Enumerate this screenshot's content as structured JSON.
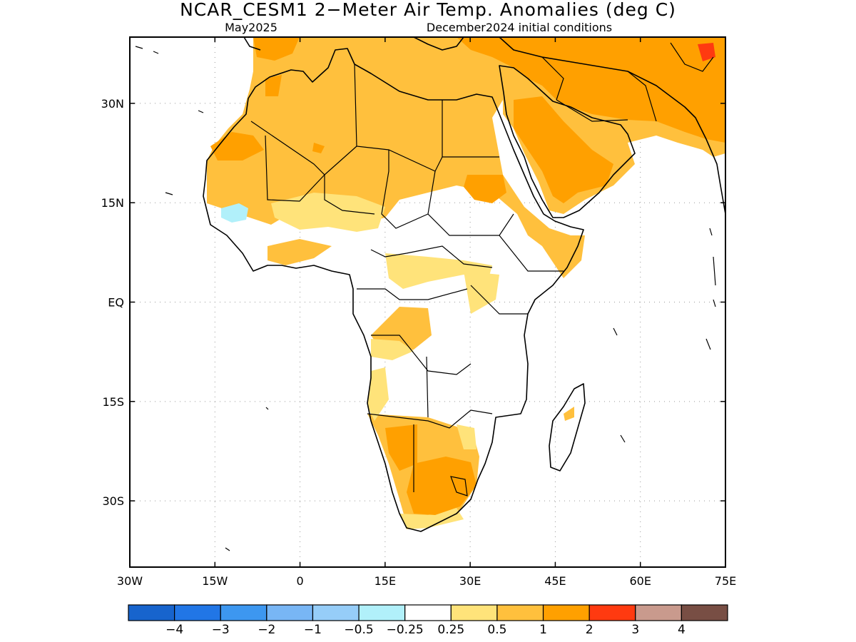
{
  "title": "NCAR_CESM1 2−Meter Air Temp. Anomalies (deg C)",
  "subtitle_left": "May2025",
  "subtitle_right": "December2024 initial conditions",
  "map": {
    "lon_range": [
      -30,
      75
    ],
    "lat_range": [
      -40,
      40
    ],
    "x_ticks": [
      {
        "lon": -30,
        "label": "30W"
      },
      {
        "lon": -15,
        "label": "15W"
      },
      {
        "lon": 0,
        "label": "0"
      },
      {
        "lon": 15,
        "label": "15E"
      },
      {
        "lon": 30,
        "label": "30E"
      },
      {
        "lon": 45,
        "label": "45E"
      },
      {
        "lon": 60,
        "label": "60E"
      },
      {
        "lon": 75,
        "label": "75E"
      }
    ],
    "y_ticks": [
      {
        "lat": 30,
        "label": "30N"
      },
      {
        "lat": 15,
        "label": "15N"
      },
      {
        "lat": 0,
        "label": "EQ"
      },
      {
        "lat": -15,
        "label": "15S"
      },
      {
        "lat": -30,
        "label": "30S"
      }
    ]
  },
  "colorbar": {
    "colors": [
      "#1764cd",
      "#2176e6",
      "#3d97f0",
      "#78b6f5",
      "#96cdf8",
      "#b1f0fa",
      "#ffffff",
      "#ffe37a",
      "#ffc03d",
      "#ffa000",
      "#ff3a10",
      "#c99a8d",
      "#784e44"
    ],
    "labels": [
      "−4",
      "−3",
      "−2",
      "−1",
      "−0.5",
      "−0.25",
      "0.25",
      "0.5",
      "1",
      "2",
      "3",
      "4"
    ]
  }
}
